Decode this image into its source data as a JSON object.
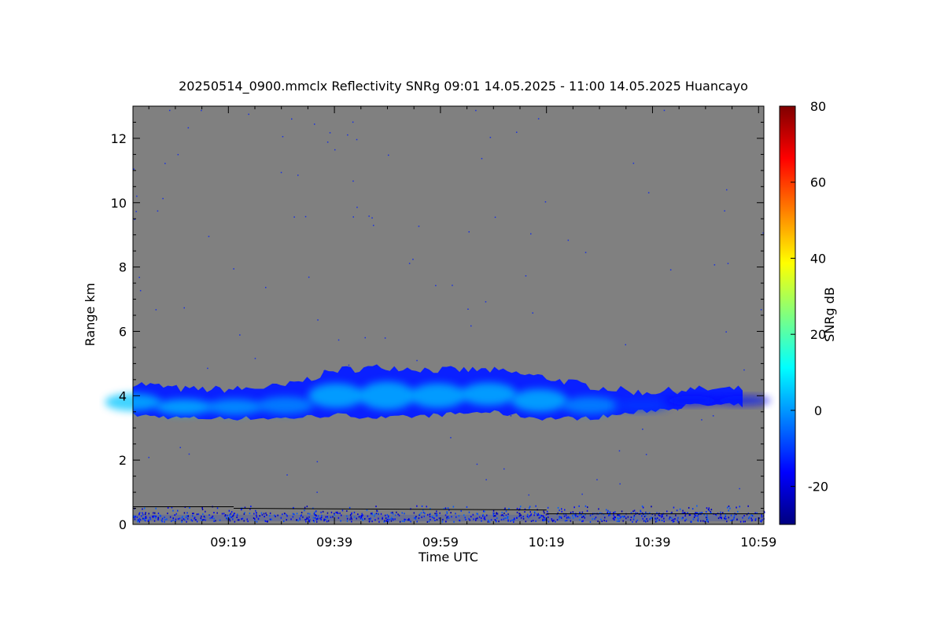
{
  "chart_data": {
    "type": "heatmap",
    "title": "20250514_0900.mmclx Reflectivity SNRg   09:01 14.05.2025 - 11:00 14.05.2025 Huancayo",
    "xlabel": "Time UTC",
    "ylabel": "Range km",
    "x_range_minutes_after_0900": [
      1,
      120
    ],
    "x_ticks": [
      {
        "label": "09:19",
        "minutes": 19
      },
      {
        "label": "09:39",
        "minutes": 39
      },
      {
        "label": "09:59",
        "minutes": 59
      },
      {
        "label": "10:19",
        "minutes": 79
      },
      {
        "label": "10:39",
        "minutes": 99
      },
      {
        "label": "10:59",
        "minutes": 119
      }
    ],
    "ylim": [
      0,
      13
    ],
    "y_ticks": [
      0,
      2,
      4,
      6,
      8,
      10,
      12
    ],
    "background_color": "#808080",
    "colorbar": {
      "label": "SNRg dB",
      "range": [
        -30,
        80
      ],
      "ticks": [
        -20,
        0,
        20,
        40,
        60,
        80
      ],
      "colormap": "jet"
    },
    "cloud_layer": {
      "time_start": "09:01",
      "time_end": "10:56",
      "base_km": [
        3.4,
        3.3,
        3.3,
        3.3,
        3.4,
        3.3,
        3.4,
        3.5,
        3.3,
        3.3,
        3.5,
        3.7,
        3.7
      ],
      "top_km": [
        4.4,
        4.2,
        4.2,
        4.3,
        4.8,
        4.9,
        4.8,
        4.8,
        4.6,
        4.3,
        4.1,
        4.2,
        4.2
      ],
      "peak_snr_db": [
        5,
        5,
        2,
        0,
        5,
        5,
        5,
        5,
        5,
        0,
        -10,
        -15,
        -15
      ]
    },
    "clutter_layer": {
      "range_km": [
        0.1,
        0.6
      ],
      "snr_db_approx": -15
    }
  }
}
